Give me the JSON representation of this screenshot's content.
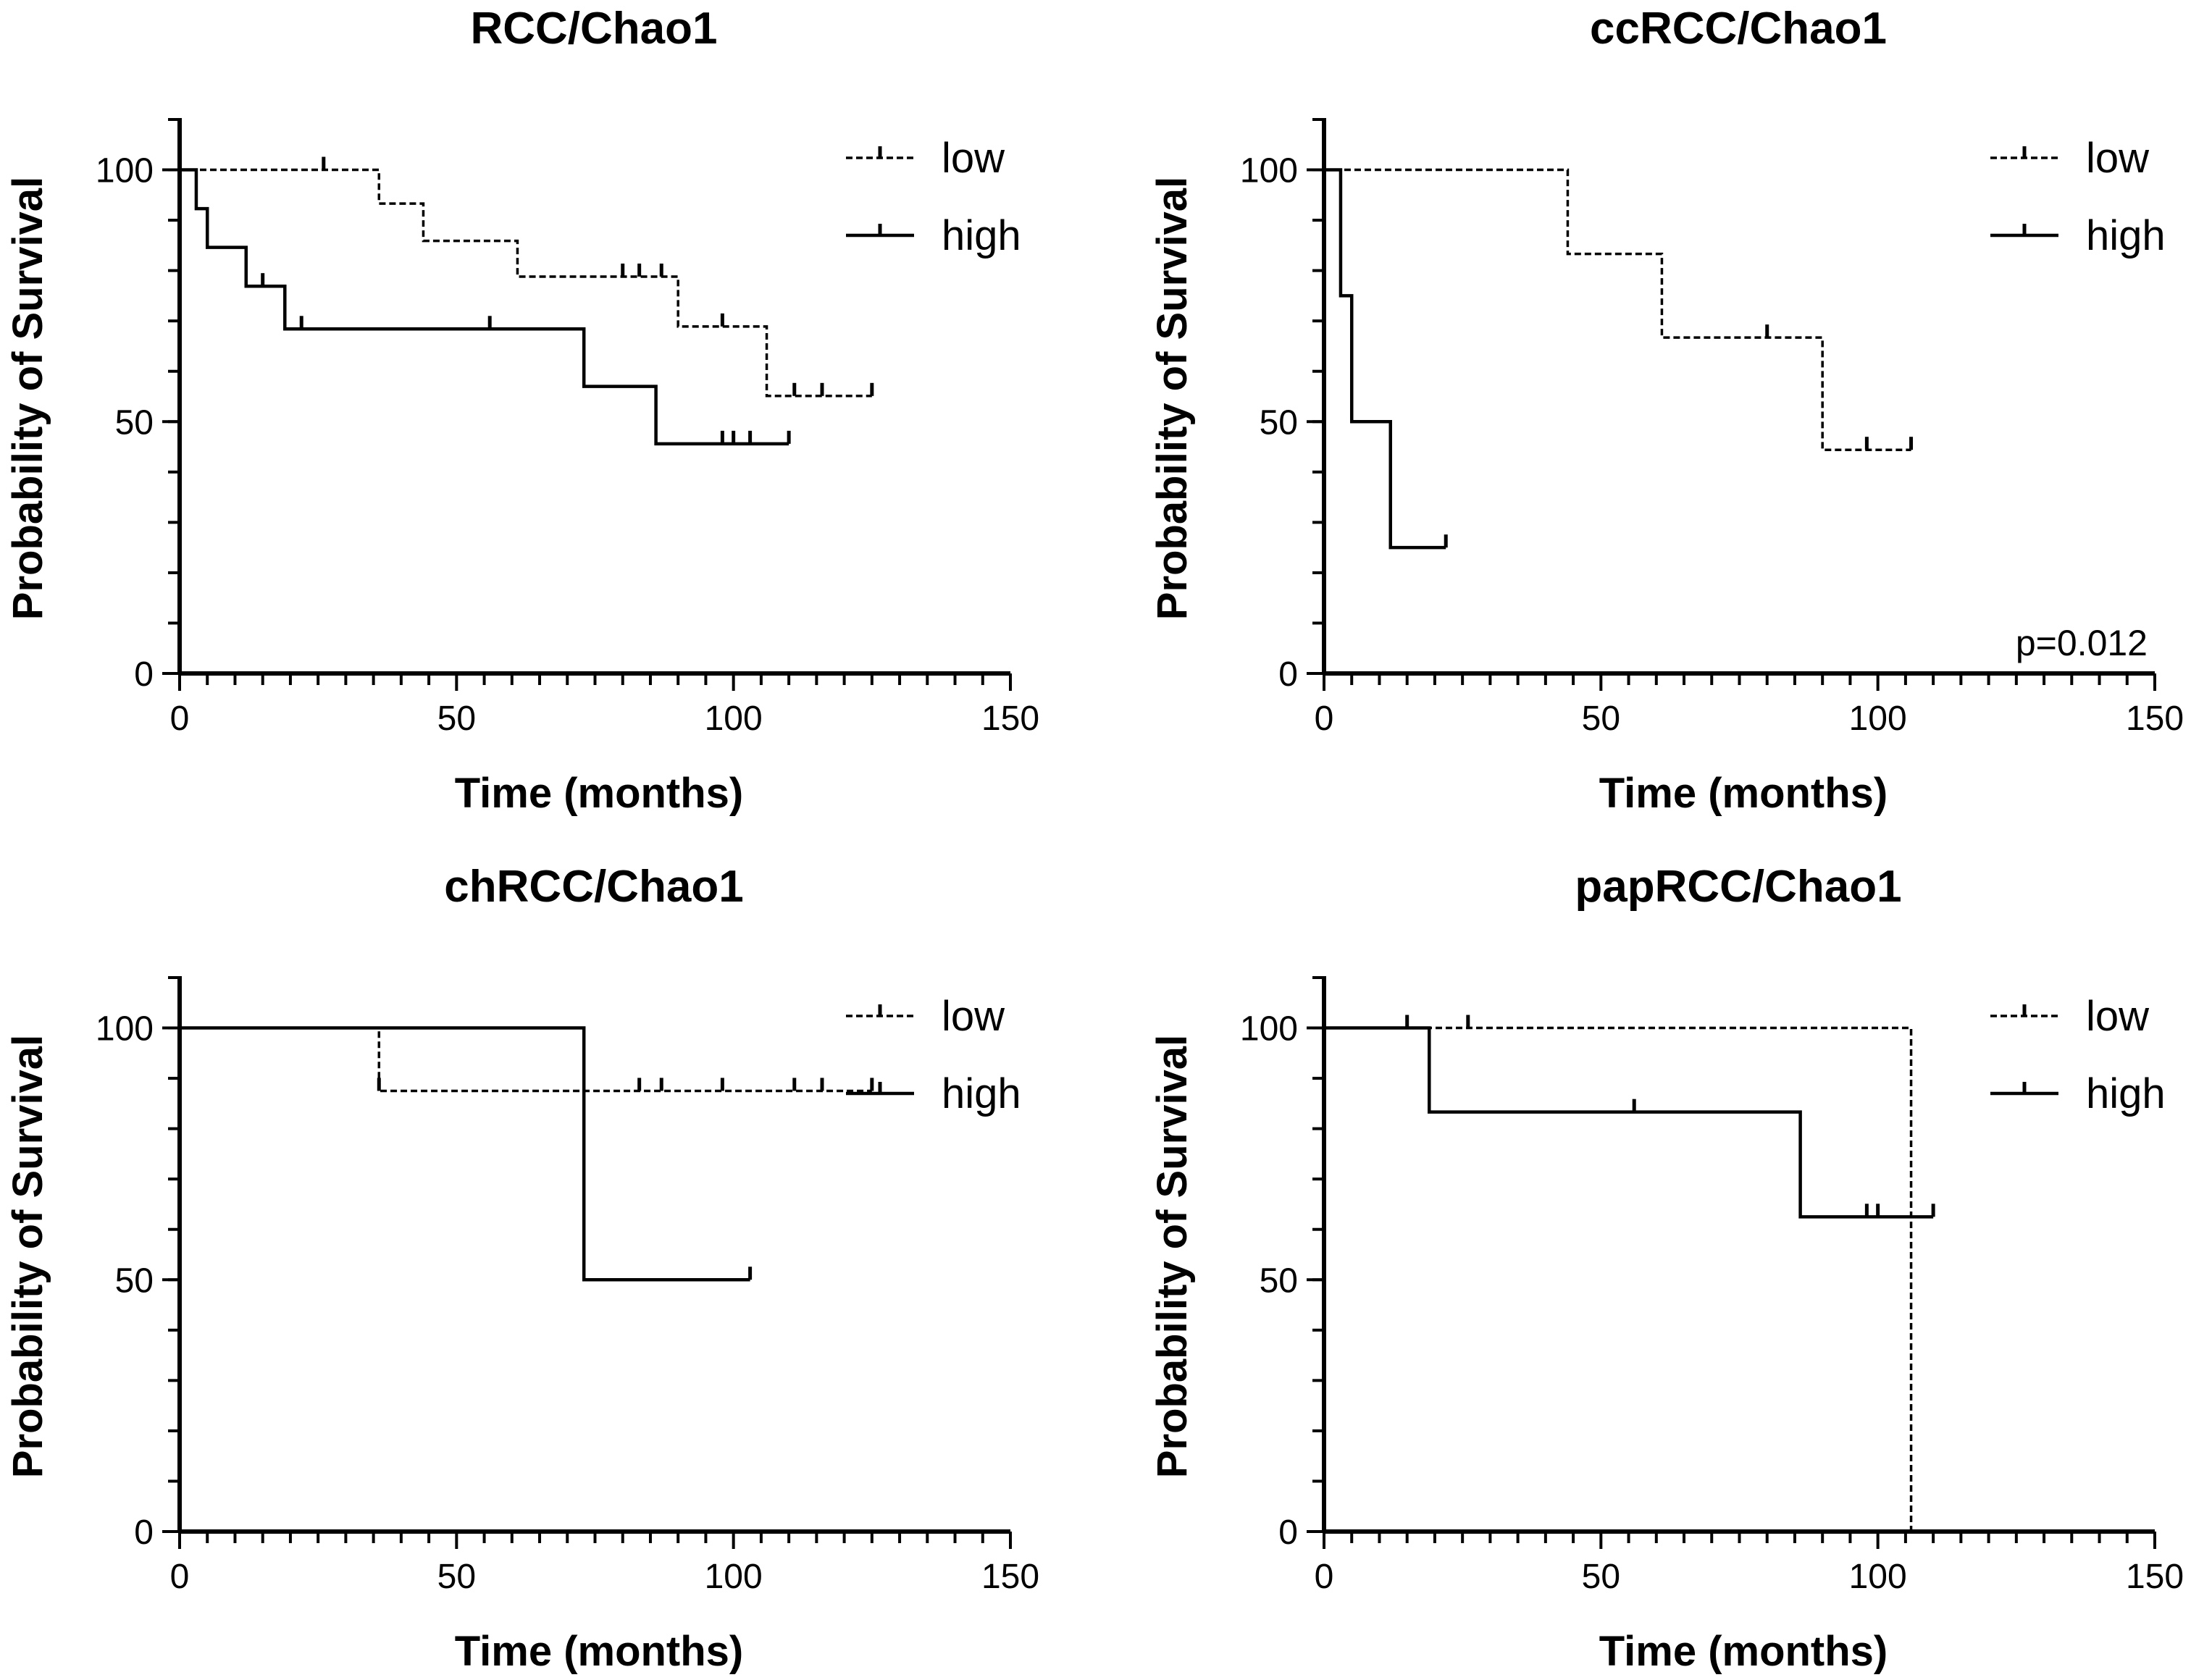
{
  "chart_data": [
    {
      "type": "line",
      "subtype": "kaplan-meier",
      "title": "RCC/Chao1",
      "xlabel": "Time (months)",
      "ylabel": "Probability of Survival",
      "xlim": [
        0,
        150
      ],
      "ylim": [
        0,
        110
      ],
      "x_ticks": [
        0,
        50,
        100,
        150
      ],
      "y_ticks": [
        0,
        50,
        100
      ],
      "x_minor_step": 5,
      "y_minor_step": 10,
      "legend_position": "top-right",
      "p_value": null,
      "series": [
        {
          "name": "low",
          "style": "dashed",
          "steps": [
            [
              0,
              100
            ],
            [
              36,
              93.3
            ],
            [
              44,
              85.9
            ],
            [
              61,
              78.8
            ],
            [
              90,
              68.9
            ],
            [
              106,
              55.1
            ],
            [
              125,
              55.1
            ]
          ],
          "censor_times": [
            26,
            80,
            83,
            87,
            98,
            111,
            116,
            125
          ]
        },
        {
          "name": "high",
          "style": "solid",
          "steps": [
            [
              0,
              100
            ],
            [
              3,
              92.3
            ],
            [
              5,
              84.6
            ],
            [
              12,
              76.9
            ],
            [
              19,
              68.4
            ],
            [
              73,
              57
            ],
            [
              86,
              45.6
            ],
            [
              110,
              45.6
            ]
          ],
          "censor_times": [
            15,
            22,
            56,
            98,
            100,
            103,
            110
          ]
        }
      ]
    },
    {
      "type": "line",
      "subtype": "kaplan-meier",
      "title": "ccRCC/Chao1",
      "xlabel": "Time (months)",
      "ylabel": "Probability of Survival",
      "xlim": [
        0,
        150
      ],
      "ylim": [
        0,
        110
      ],
      "x_ticks": [
        0,
        50,
        100,
        150
      ],
      "y_ticks": [
        0,
        50,
        100
      ],
      "x_minor_step": 5,
      "y_minor_step": 10,
      "legend_position": "top-right",
      "p_value": "p=0.012",
      "series": [
        {
          "name": "low",
          "style": "dashed",
          "steps": [
            [
              0,
              100
            ],
            [
              44,
              83.3
            ],
            [
              61,
              66.7
            ],
            [
              90,
              44.4
            ],
            [
              106,
              44.4
            ]
          ],
          "censor_times": [
            80,
            98,
            106
          ]
        },
        {
          "name": "high",
          "style": "solid",
          "steps": [
            [
              0,
              100
            ],
            [
              3,
              75
            ],
            [
              5,
              50
            ],
            [
              12,
              25
            ],
            [
              22,
              25
            ]
          ],
          "censor_times": [
            22
          ]
        }
      ]
    },
    {
      "type": "line",
      "subtype": "kaplan-meier",
      "title": "chRCC/Chao1",
      "xlabel": "Time (months)",
      "ylabel": "Probability of Survival",
      "xlim": [
        0,
        150
      ],
      "ylim": [
        0,
        110
      ],
      "x_ticks": [
        0,
        50,
        100,
        150
      ],
      "y_ticks": [
        0,
        50,
        100
      ],
      "x_minor_step": 5,
      "y_minor_step": 10,
      "legend_position": "top-right",
      "p_value": null,
      "series": [
        {
          "name": "low",
          "style": "dashed",
          "steps": [
            [
              0,
              100
            ],
            [
              36,
              87.5
            ],
            [
              125,
              87.5
            ]
          ],
          "censor_times": [
            36,
            83,
            87,
            98,
            111,
            116,
            125
          ]
        },
        {
          "name": "high",
          "style": "solid",
          "steps": [
            [
              0,
              100
            ],
            [
              73,
              50
            ],
            [
              103,
              50
            ]
          ],
          "censor_times": [
            103
          ]
        }
      ]
    },
    {
      "type": "line",
      "subtype": "kaplan-meier",
      "title": "papRCC/Chao1",
      "xlabel": "Time (months)",
      "ylabel": "Probability of Survival",
      "xlim": [
        0,
        150
      ],
      "ylim": [
        0,
        110
      ],
      "x_ticks": [
        0,
        50,
        100,
        150
      ],
      "y_ticks": [
        0,
        50,
        100
      ],
      "x_minor_step": 5,
      "y_minor_step": 10,
      "legend_position": "top-right",
      "p_value": null,
      "series": [
        {
          "name": "low",
          "style": "dashed",
          "steps": [
            [
              0,
              100
            ],
            [
              106,
              0
            ]
          ],
          "censor_times": [
            15,
            26
          ]
        },
        {
          "name": "high",
          "style": "solid",
          "steps": [
            [
              0,
              100
            ],
            [
              19,
              83.3
            ],
            [
              86,
              62.5
            ],
            [
              110,
              62.5
            ]
          ],
          "censor_times": [
            56,
            98,
            100,
            110
          ]
        }
      ]
    }
  ]
}
